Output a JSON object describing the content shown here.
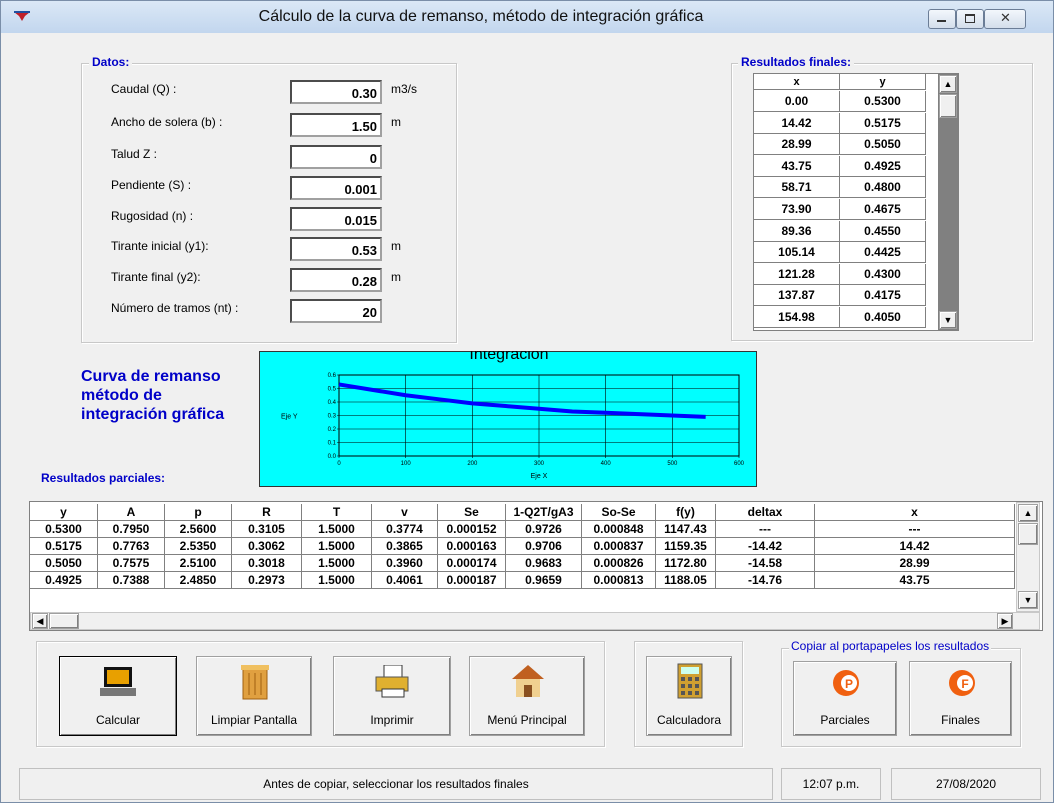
{
  "window": {
    "title": "Cálculo de la curva de remanso, método de integración gráfica"
  },
  "datos": {
    "legend": "Datos:",
    "fields": [
      {
        "label": "Caudal (Q) :",
        "value": "0.30",
        "unit": "m3/s"
      },
      {
        "label": "Ancho de solera (b) :",
        "value": "1.50",
        "unit": "m"
      },
      {
        "label": "Talud Z :",
        "value": "0"
      },
      {
        "label": "Pendiente (S) :",
        "value": "0.001"
      },
      {
        "label": "Rugosidad (n) :",
        "value": "0.015"
      },
      {
        "label": "Tirante inicial (y1):",
        "value": "0.53",
        "unit": "m"
      },
      {
        "label": "Tirante final (y2):",
        "value": "0.28",
        "unit": "m"
      },
      {
        "label": "Número de tramos (nt) :",
        "value": "20"
      }
    ]
  },
  "resultados_finales": {
    "legend": "Resultados finales:",
    "columns": [
      "x",
      "y"
    ],
    "rows": [
      [
        "0.00",
        "0.5300"
      ],
      [
        "14.42",
        "0.5175"
      ],
      [
        "28.99",
        "0.5050"
      ],
      [
        "43.75",
        "0.4925"
      ],
      [
        "58.71",
        "0.4800"
      ],
      [
        "73.90",
        "0.4675"
      ],
      [
        "89.36",
        "0.4550"
      ],
      [
        "105.14",
        "0.4425"
      ],
      [
        "121.28",
        "0.4300"
      ],
      [
        "137.87",
        "0.4175"
      ],
      [
        "154.98",
        "0.4050"
      ]
    ]
  },
  "curva": {
    "heading": "Curva de remanso método de integración gráfica",
    "title": "Integración",
    "xlabel": "Eje X",
    "ylabel": "Eje Y",
    "xlim": [
      0,
      600
    ],
    "xticks": [
      {
        "value": 0,
        "label": "0"
      },
      100,
      200,
      300,
      400,
      500,
      600
    ],
    "ylim": [
      0,
      0.6
    ],
    "yticks": [
      {
        "value": 0,
        "label": "0.0"
      },
      0.1,
      0.2,
      0.3,
      0.4,
      0.5,
      0.6
    ],
    "color": "#0000ff",
    "x": [
      0,
      50,
      100,
      150,
      200,
      250,
      300,
      350,
      400,
      450,
      500,
      550
    ],
    "y": [
      0.53,
      0.49,
      0.45,
      0.42,
      0.39,
      0.37,
      0.35,
      0.33,
      0.32,
      0.31,
      0.3,
      0.29
    ]
  },
  "resultados_parciales": {
    "label": "Resultados parciales:",
    "columns": [
      "y",
      "A",
      "p",
      "R",
      "T",
      "v",
      "Se",
      "1-Q2T/gA3",
      "So-Se",
      "f(y)",
      "deltax",
      "x"
    ],
    "rows": [
      [
        "0.5300",
        "0.7950",
        "2.5600",
        "0.3105",
        "1.5000",
        "0.3774",
        "0.000152",
        "0.9726",
        "0.000848",
        "1147.43",
        "---",
        "---"
      ],
      [
        "0.5175",
        "0.7763",
        "2.5350",
        "0.3062",
        "1.5000",
        "0.3865",
        "0.000163",
        "0.9706",
        "0.000837",
        "1159.35",
        "-14.42",
        "14.42"
      ],
      [
        "0.5050",
        "0.7575",
        "2.5100",
        "0.3018",
        "1.5000",
        "0.3960",
        "0.000174",
        "0.9683",
        "0.000826",
        "1172.80",
        "-14.58",
        "28.99"
      ],
      [
        "0.4925",
        "0.7388",
        "2.4850",
        "0.2973",
        "1.5000",
        "0.4061",
        "0.000187",
        "0.9659",
        "0.000813",
        "1188.05",
        "-14.76",
        "43.75"
      ]
    ]
  },
  "buttons": {
    "calcular": "Calcular",
    "limpiar": "Limpiar Pantalla",
    "imprimir": "Imprimir",
    "menu": "Menú Principal",
    "calculadora": "Calculadora"
  },
  "copiar": {
    "legend": "Copiar al portapapeles los resultados",
    "parciales": "Parciales",
    "finales": "Finales"
  },
  "status": {
    "message": "Antes de copiar, seleccionar los resultados finales",
    "time": "12:07 p.m.",
    "date": "27/08/2020"
  }
}
